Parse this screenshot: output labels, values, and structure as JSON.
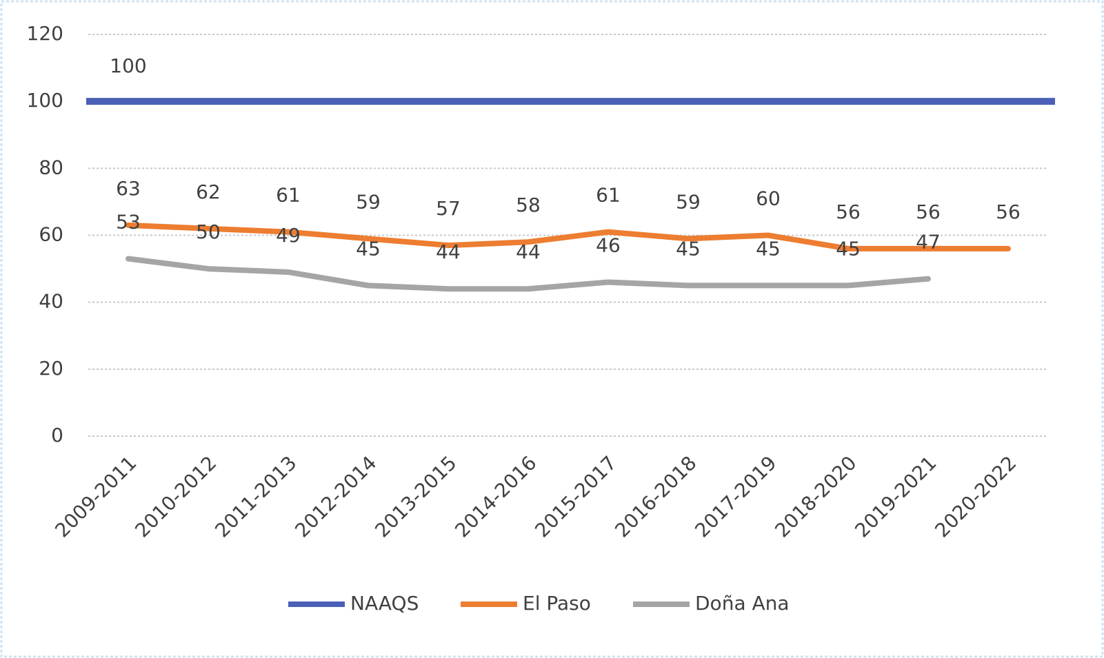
{
  "chart_data": {
    "type": "line",
    "categories": [
      "2009-2011",
      "2010-2012",
      "2011-2013",
      "2012-2014",
      "2013-2015",
      "2014-2016",
      "2015-2017",
      "2016-2018",
      "2017-2019",
      "2018-2020",
      "2019-2021",
      "2020-2022"
    ],
    "reference_line": {
      "name": "NAAQS",
      "value": 100,
      "color": "#4a5fb5"
    },
    "series": [
      {
        "name": "El Paso",
        "color": "#ed7d31",
        "values": [
          63,
          62,
          61,
          59,
          57,
          58,
          61,
          59,
          60,
          56,
          56,
          56
        ]
      },
      {
        "name": "Doña Ana",
        "color": "#a5a5a5",
        "values": [
          53,
          50,
          49,
          45,
          44,
          44,
          46,
          45,
          45,
          45,
          47,
          null
        ]
      }
    ],
    "ylim": [
      0,
      120
    ],
    "yticks": [
      0,
      20,
      40,
      60,
      80,
      100,
      120
    ],
    "grid": true,
    "legend": "bottom"
  }
}
